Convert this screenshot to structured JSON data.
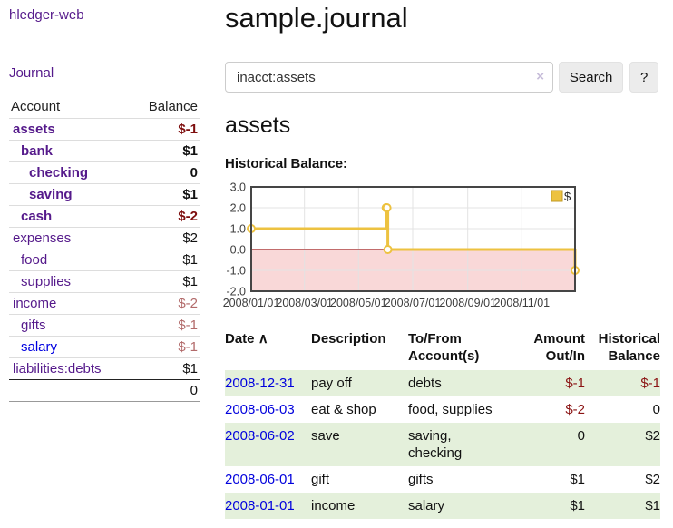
{
  "sidebar": {
    "brand": "hledger-web",
    "nav": {
      "journal": "Journal"
    },
    "accounts_table": {
      "headers": {
        "account": "Account",
        "balance": "Balance"
      },
      "rows": [
        {
          "name": "assets",
          "balance": "$-1"
        },
        {
          "name": "bank",
          "balance": "$1"
        },
        {
          "name": "checking",
          "balance": "0"
        },
        {
          "name": "saving",
          "balance": "$1"
        },
        {
          "name": "cash",
          "balance": "$-2"
        },
        {
          "name": "expenses",
          "balance": "$2"
        },
        {
          "name": "food",
          "balance": "$1"
        },
        {
          "name": "supplies",
          "balance": "$1"
        },
        {
          "name": "income",
          "balance": "$-2"
        },
        {
          "name": "gifts",
          "balance": "$-1"
        },
        {
          "name": "salary",
          "balance": "$-1"
        },
        {
          "name": "liabilities:debts",
          "balance": "$1"
        }
      ],
      "total": "0"
    }
  },
  "header": {
    "title": "sample.journal"
  },
  "search": {
    "query": "inacct:assets",
    "clear_icon": "×",
    "search_label": "Search",
    "help_label": "?"
  },
  "account_page": {
    "heading": "assets",
    "chart_title": "Historical Balance:"
  },
  "chart_data": {
    "type": "line",
    "title": "Historical Balance:",
    "series": [
      {
        "name": "$",
        "color": "#edc240",
        "step": true,
        "points": [
          [
            "2008-01-01",
            1
          ],
          [
            "2008-06-01",
            2
          ],
          [
            "2008-06-02",
            2
          ],
          [
            "2008-06-03",
            0
          ],
          [
            "2008-12-31",
            -1
          ]
        ]
      }
    ],
    "x_start": "2008-01-01",
    "x_end": "2008-12-31",
    "x_ticks": [
      "2008/01/01",
      "2008/03/01",
      "2008/05/01",
      "2008/07/01",
      "2008/09/01",
      "2008/11/01"
    ],
    "y_ticks": [
      "3.0",
      "2.0",
      "1.0",
      "0.0",
      "-1.0",
      "-2.0"
    ],
    "ylim": [
      -2,
      3
    ],
    "grid": true,
    "negative_fill": "#f9d8d8",
    "zero_line_color": "#8b0000",
    "legend": {
      "label": "$",
      "position": "top-right"
    }
  },
  "transactions": {
    "headers": {
      "date": "Date",
      "sort_indicator": "∧",
      "description": "Description",
      "accounts": "To/From Account(s)",
      "amount": "Amount Out/In",
      "balance": "Historical Balance"
    },
    "rows": [
      {
        "date": "2008-12-31",
        "description": "pay off",
        "accounts": "debts",
        "amount": "$-1",
        "balance": "$-1"
      },
      {
        "date": "2008-06-03",
        "description": "eat & shop",
        "accounts": "food, supplies",
        "amount": "$-2",
        "balance": "0"
      },
      {
        "date": "2008-06-02",
        "description": "save",
        "accounts": "saving, checking",
        "amount": "0",
        "balance": "$2"
      },
      {
        "date": "2008-06-01",
        "description": "gift",
        "accounts": "gifts",
        "amount": "$1",
        "balance": "$2"
      },
      {
        "date": "2008-01-01",
        "description": "income",
        "accounts": "salary",
        "amount": "$1",
        "balance": "$1"
      }
    ]
  }
}
